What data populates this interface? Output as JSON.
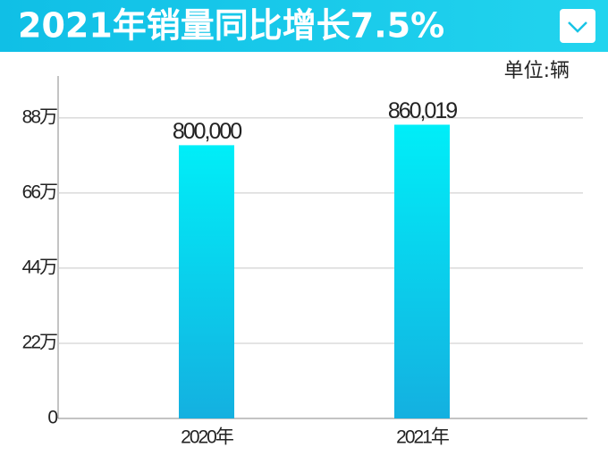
{
  "chart_data": {
    "type": "bar",
    "title": "2021年销量同比增长7.5%",
    "unit_label": "单位:辆",
    "categories": [
      "2020年",
      "2021年"
    ],
    "values": [
      800000,
      860019
    ],
    "value_labels": [
      "800,000",
      "860,019"
    ],
    "color": "#0cc8ec",
    "gradient": [
      "#00eef8",
      "#14b0e0"
    ],
    "ylim": [
      0,
      1000000
    ],
    "yticks": [
      0,
      {
        "value": 220000,
        "label": "22万"
      },
      {
        "value": 440000,
        "label": "44万"
      },
      {
        "value": 660000,
        "label": "66万"
      },
      {
        "value": 880000,
        "label": "88万"
      }
    ],
    "grid": true
  }
}
